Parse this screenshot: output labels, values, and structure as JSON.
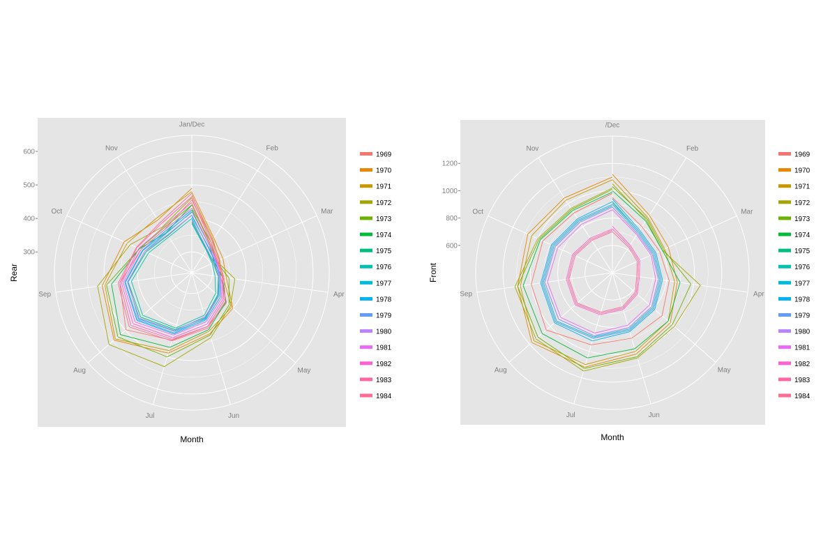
{
  "years": [
    "1969",
    "1970",
    "1971",
    "1972",
    "1973",
    "1974",
    "1975",
    "1976",
    "1977",
    "1978",
    "1979",
    "1980",
    "1981",
    "1982",
    "1983",
    "1984"
  ],
  "colors": [
    "#F8766D",
    "#E58700",
    "#C99800",
    "#A3A500",
    "#6BB100",
    "#00BA38",
    "#00BF7D",
    "#00C0AF",
    "#00BCD8",
    "#00B0F6",
    "#619CFF",
    "#B983FF",
    "#E76BF3",
    "#FD61D1",
    "#FF67A4",
    "#FF6C91"
  ],
  "chart_data": [
    {
      "type": "line",
      "coord": "polar",
      "xlabel": "Month",
      "ylabel": "Rear",
      "theta_labels": [
        "Jan/Dec",
        "Feb",
        "Mar",
        "Apr",
        "May",
        "Jun",
        "Jul",
        "Aug",
        "Sep",
        "Oct",
        "Nov"
      ],
      "y_ticks": [
        300,
        400,
        500,
        600
      ],
      "ylim": [
        238,
        648
      ],
      "legend_position": "right",
      "series": [
        {
          "name": "1969",
          "values": [
            455,
            352,
            330,
            325,
            375,
            405,
            448,
            498,
            455,
            405,
            390,
            455
          ]
        },
        {
          "name": "1970",
          "values": [
            478,
            360,
            340,
            342,
            400,
            428,
            488,
            545,
            508,
            460,
            425,
            490
          ]
        },
        {
          "name": "1971",
          "values": [
            468,
            355,
            328,
            332,
            395,
            420,
            480,
            540,
            500,
            450,
            432,
            480
          ]
        },
        {
          "name": "1972",
          "values": [
            445,
            340,
            320,
            368,
            390,
            440,
            530,
            565,
            522,
            440,
            400,
            462
          ]
        },
        {
          "name": "1973",
          "values": [
            430,
            345,
            318,
            350,
            385,
            432,
            500,
            530,
            495,
            410,
            395,
            440
          ]
        },
        {
          "name": "1974",
          "values": [
            425,
            335,
            312,
            330,
            372,
            415,
            470,
            520,
            480,
            410,
            380,
            440
          ]
        },
        {
          "name": "1975",
          "values": [
            390,
            320,
            308,
            318,
            340,
            378,
            415,
            440,
            430,
            388,
            370,
            410
          ]
        },
        {
          "name": "1976",
          "values": [
            385,
            318,
            305,
            308,
            332,
            370,
            410,
            432,
            420,
            380,
            365,
            400
          ]
        },
        {
          "name": "1977",
          "values": [
            400,
            320,
            312,
            320,
            342,
            382,
            420,
            448,
            430,
            392,
            378,
            420
          ]
        },
        {
          "name": "1978",
          "values": [
            410,
            328,
            315,
            325,
            350,
            385,
            428,
            455,
            440,
            400,
            385,
            425
          ]
        },
        {
          "name": "1979",
          "values": [
            405,
            330,
            316,
            322,
            345,
            380,
            425,
            452,
            438,
            398,
            380,
            418
          ]
        },
        {
          "name": "1980",
          "values": [
            395,
            322,
            310,
            320,
            345,
            375,
            418,
            445,
            432,
            392,
            372,
            410
          ]
        },
        {
          "name": "1981",
          "values": [
            420,
            335,
            318,
            325,
            355,
            390,
            432,
            462,
            445,
            405,
            390,
            430
          ]
        },
        {
          "name": "1982",
          "values": [
            440,
            338,
            320,
            330,
            360,
            398,
            440,
            470,
            450,
            412,
            398,
            448
          ]
        },
        {
          "name": "1983",
          "values": [
            460,
            345,
            322,
            330,
            365,
            405,
            445,
            478,
            455,
            418,
            410,
            465
          ]
        },
        {
          "name": "1984",
          "values": [
            470,
            350,
            325,
            335,
            370,
            410,
            450,
            485,
            460,
            420,
            415,
            475
          ]
        }
      ]
    },
    {
      "type": "line",
      "coord": "polar",
      "xlabel": "Month",
      "ylabel": "Front",
      "theta_labels": [
        "/Dec",
        "Feb",
        "Mar",
        "Apr",
        "May",
        "Jun",
        "Jul",
        "Aug",
        "Sep",
        "Oct",
        "Nov"
      ],
      "y_ticks": [
        600,
        800,
        1000,
        1200
      ],
      "ylim": [
        400,
        1400
      ],
      "legend_position": "right",
      "series": [
        {
          "name": "1969",
          "values": [
            950,
            800,
            780,
            820,
            880,
            900,
            950,
            1040,
            1000,
            960,
            920,
            980
          ]
        },
        {
          "name": "1970",
          "values": [
            1120,
            900,
            850,
            880,
            960,
            1020,
            1120,
            1180,
            1100,
            1080,
            1050,
            1100
          ]
        },
        {
          "name": "1971",
          "values": [
            1080,
            880,
            820,
            860,
            940,
            1000,
            1100,
            1160,
            1080,
            1050,
            1030,
            1080
          ]
        },
        {
          "name": "1972",
          "values": [
            1050,
            860,
            800,
            1050,
            1000,
            1050,
            1150,
            1140,
            1120,
            1000,
            960,
            1020
          ]
        },
        {
          "name": "1973",
          "values": [
            1030,
            870,
            810,
            980,
            980,
            1040,
            1130,
            1120,
            1100,
            990,
            950,
            1010
          ]
        },
        {
          "name": "1974",
          "values": [
            1000,
            850,
            800,
            900,
            940,
            980,
            1050,
            1080,
            1060,
            980,
            940,
            990
          ]
        },
        {
          "name": "1975",
          "values": [
            920,
            760,
            740,
            760,
            800,
            840,
            900,
            950,
            920,
            880,
            860,
            900
          ]
        },
        {
          "name": "1976",
          "values": [
            880,
            740,
            720,
            740,
            780,
            820,
            880,
            920,
            900,
            860,
            840,
            880
          ]
        },
        {
          "name": "1977",
          "values": [
            900,
            750,
            730,
            750,
            790,
            830,
            890,
            940,
            910,
            870,
            850,
            890
          ]
        },
        {
          "name": "1978",
          "values": [
            940,
            770,
            750,
            770,
            810,
            850,
            920,
            960,
            930,
            890,
            870,
            920
          ]
        },
        {
          "name": "1979",
          "values": [
            910,
            760,
            740,
            760,
            800,
            840,
            900,
            950,
            920,
            880,
            860,
            900
          ]
        },
        {
          "name": "1980",
          "values": [
            880,
            740,
            720,
            740,
            780,
            820,
            880,
            920,
            900,
            860,
            840,
            880
          ]
        },
        {
          "name": "1981",
          "values": [
            860,
            730,
            710,
            720,
            760,
            800,
            860,
            900,
            880,
            840,
            820,
            860
          ]
        },
        {
          "name": "1982",
          "values": [
            740,
            640,
            620,
            600,
            640,
            680,
            720,
            760,
            740,
            720,
            700,
            720
          ]
        },
        {
          "name": "1983",
          "values": [
            700,
            620,
            600,
            580,
            620,
            660,
            700,
            740,
            720,
            700,
            680,
            700
          ]
        },
        {
          "name": "1984",
          "values": [
            720,
            630,
            610,
            590,
            630,
            670,
            710,
            750,
            730,
            710,
            690,
            710
          ]
        }
      ]
    }
  ]
}
